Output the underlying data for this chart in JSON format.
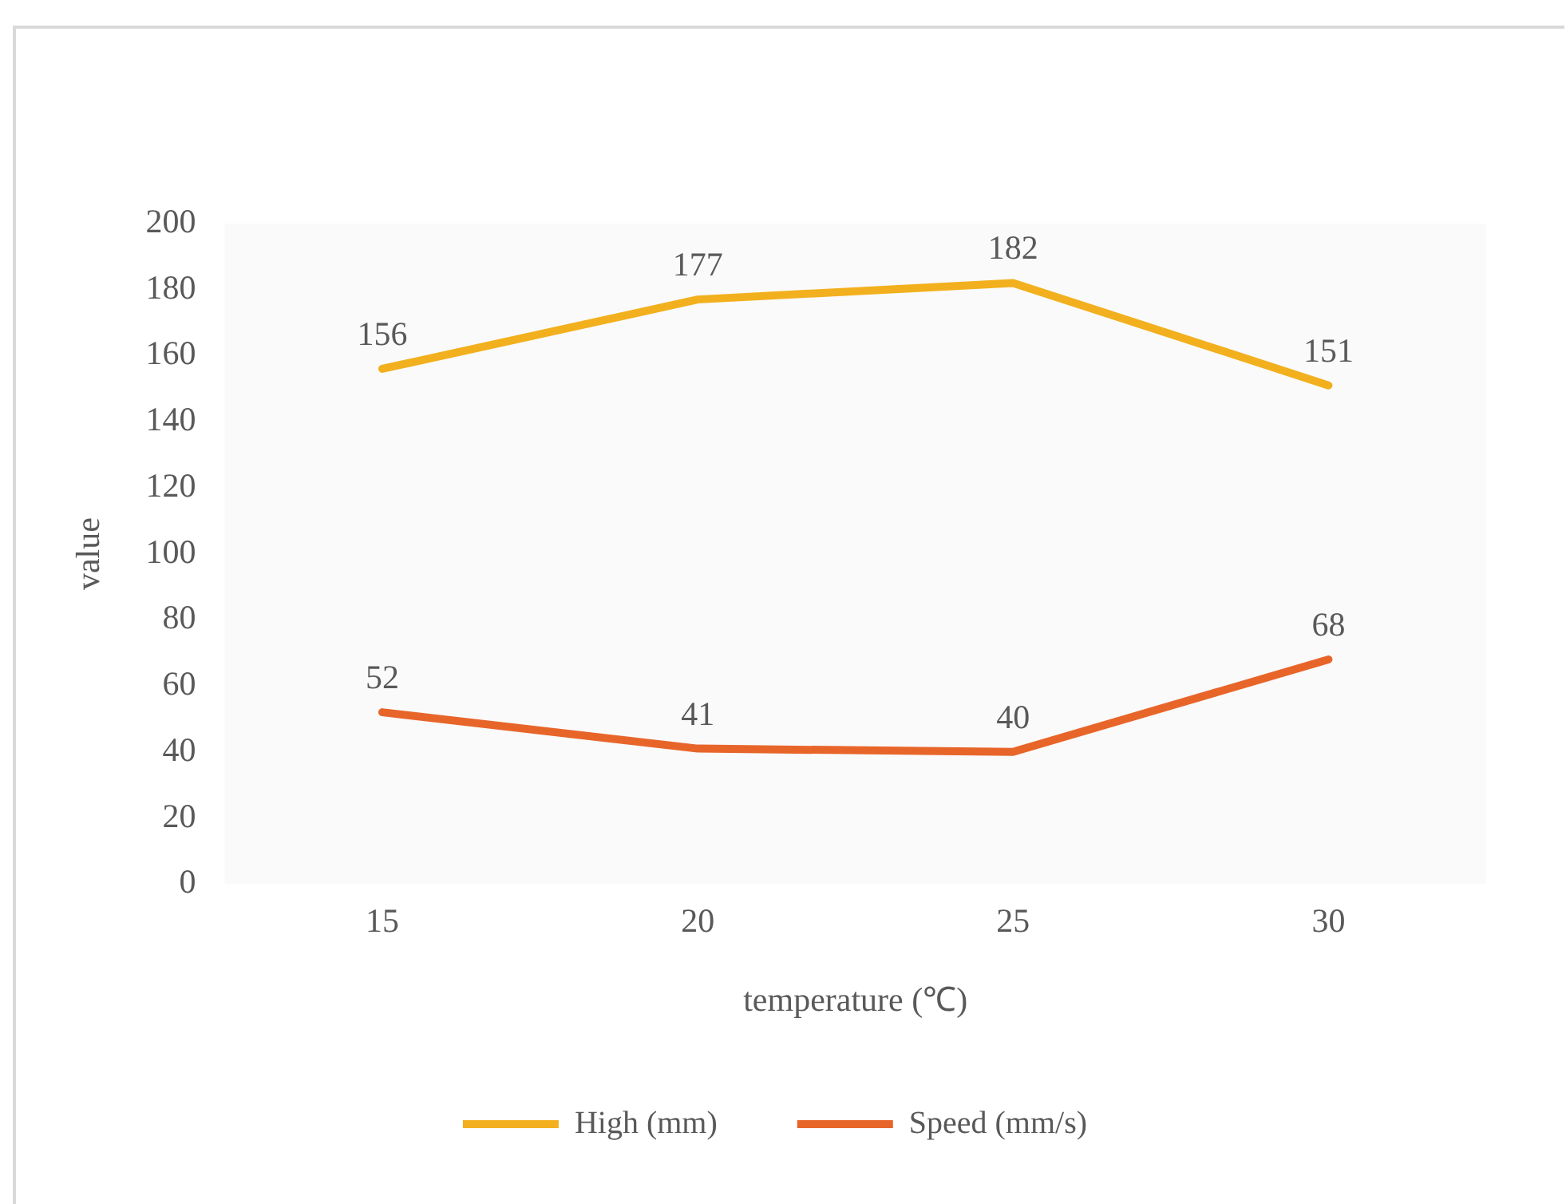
{
  "chart_data": {
    "type": "line",
    "xlabel": "temperature (℃)",
    "ylabel": "value",
    "categories": [
      "15",
      "20",
      "25",
      "30"
    ],
    "series": [
      {
        "name": "High (mm)",
        "color": "#f2b01e",
        "values": [
          156,
          177,
          182,
          151
        ]
      },
      {
        "name": "Speed (mm/s)",
        "color": "#e8652a",
        "values": [
          52,
          41,
          40,
          68
        ]
      }
    ],
    "ylim": [
      0,
      200
    ],
    "yticks": [
      0,
      20,
      40,
      60,
      80,
      100,
      120,
      140,
      160,
      180,
      200
    ],
    "grid": false,
    "legend": "bottom",
    "data_labels": true,
    "marker": "none",
    "line_style": "solid"
  }
}
